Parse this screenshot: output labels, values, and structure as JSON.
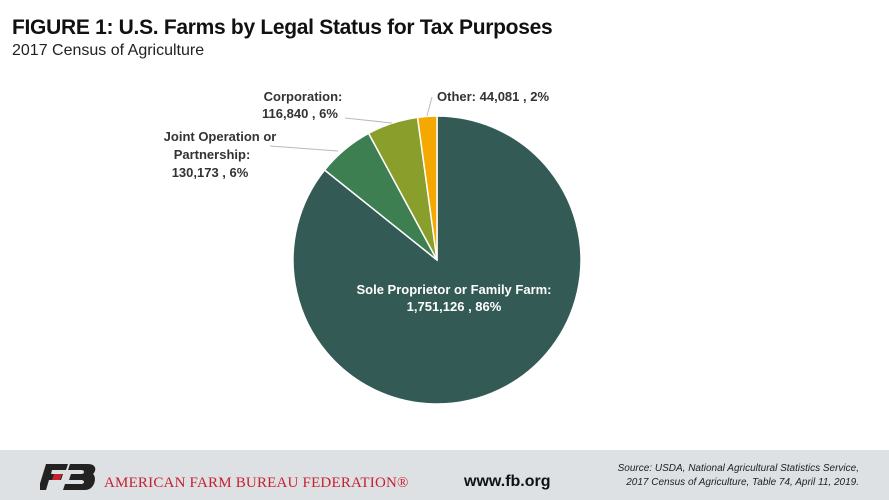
{
  "title": "FIGURE 1: U.S. Farms by Legal Status for Tax Purposes",
  "subtitle": "2017 Census of Agriculture",
  "chart_data": {
    "type": "pie",
    "title": "FIGURE 1: U.S. Farms by Legal Status for Tax Purposes",
    "subtitle": "2017 Census of Agriculture",
    "slices": [
      {
        "name": "Sole Proprietor or Family Farm:",
        "value": 1751126,
        "percent": 86,
        "label": "1,751,126 , 86%",
        "color": "#335a55"
      },
      {
        "name": "Joint Operation or Partnership:",
        "value": 130173,
        "percent": 6,
        "label": "130,173 , 6%",
        "color": "#3e7f52"
      },
      {
        "name": "Corporation:",
        "value": 116840,
        "percent": 6,
        "label": "116,840 , 6%",
        "color": "#8a9e2b"
      },
      {
        "name": "Other:",
        "value": 44081,
        "percent": 2,
        "label": "44,081 , 2%",
        "color": "#f5a800"
      }
    ]
  },
  "footer": {
    "org": "AMERICAN FARM BUREAU FEDERATION®",
    "logo_text": "FB",
    "website": "www.fb.org",
    "source_line1": "Source: USDA, National Agricultural Statistics Service,",
    "source_line2": "2017 Census of Agriculture, Table 74, April 11, 2019."
  }
}
